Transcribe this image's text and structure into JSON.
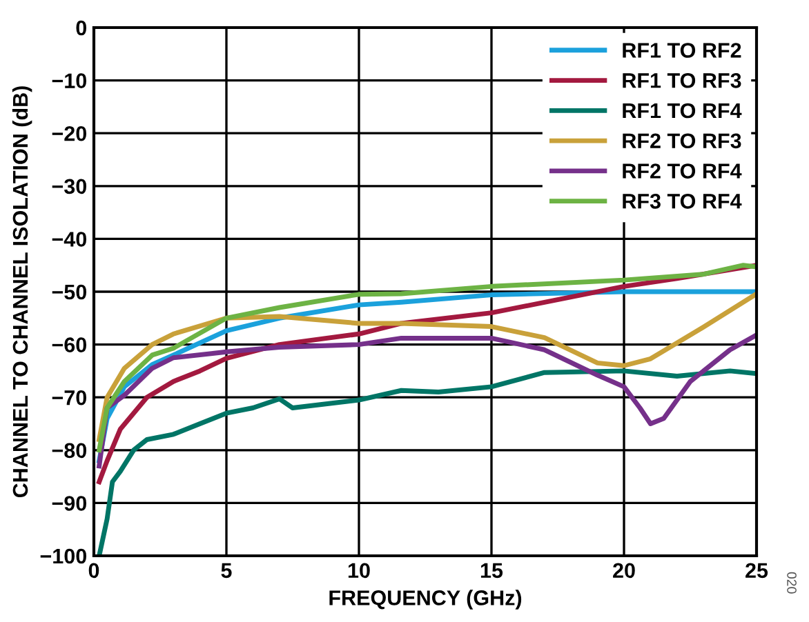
{
  "chart_data": {
    "type": "line",
    "xlabel": "FREQUENCY (GHz)",
    "ylabel": "CHANNEL TO CHANNEL ISOLATION (dB)",
    "xlim": [
      0,
      25
    ],
    "xticks": [
      0,
      5,
      10,
      15,
      20,
      25
    ],
    "ylim": [
      -100,
      0
    ],
    "yticks": [
      -100,
      -90,
      -80,
      -70,
      -60,
      -50,
      -40,
      -30,
      -20,
      -10,
      0
    ],
    "grid": true,
    "legend": "top right",
    "annotations": [
      "020"
    ],
    "series": [
      {
        "name": "RF1 TO RF2",
        "color": "#1ba1dc",
        "x": [
          0.2,
          0.5,
          1.15,
          2.2,
          3,
          5,
          7,
          10,
          11.6,
          15,
          20,
          25
        ],
        "values": [
          -82,
          -74,
          -68,
          -63.8,
          -62,
          -57.4,
          -55,
          -52.5,
          -52,
          -50.6,
          -50,
          -50
        ]
      },
      {
        "name": "RF1 TO RF3",
        "color": "#a3193f",
        "x": [
          0.2,
          0.5,
          1,
          2,
          3,
          4,
          5,
          7,
          10,
          11.6,
          15,
          17,
          20,
          22,
          25
        ],
        "values": [
          -86,
          -82,
          -76,
          -70,
          -67,
          -65,
          -62.6,
          -60,
          -58,
          -56,
          -54,
          -52,
          -49,
          -47.5,
          -45
        ]
      },
      {
        "name": "RF1 TO RF4",
        "color": "#007566",
        "x": [
          0.2,
          0.5,
          0.7,
          1,
          1.5,
          2,
          3,
          4,
          5,
          6,
          7,
          7.5,
          10,
          11.6,
          13,
          15,
          17,
          20,
          22,
          24,
          25
        ],
        "values": [
          -100,
          -93,
          -86,
          -84,
          -80,
          -78,
          -77,
          -75,
          -73,
          -72,
          -70.3,
          -72,
          -70.5,
          -68.7,
          -69,
          -68,
          -65.3,
          -65,
          -66,
          -65,
          -65.5
        ]
      },
      {
        "name": "RF2 TO RF3",
        "color": "#c9a13a",
        "x": [
          0.2,
          0.5,
          1.15,
          2.2,
          3,
          5,
          7,
          10,
          11.6,
          15,
          17,
          19,
          20,
          21,
          23,
          25
        ],
        "values": [
          -78,
          -70,
          -64.5,
          -60,
          -58,
          -55,
          -54.7,
          -56,
          -56,
          -56.6,
          -58.7,
          -63.5,
          -64,
          -62.7,
          -56.7,
          -50.4
        ]
      },
      {
        "name": "RF2 TO RF4",
        "color": "#75308a",
        "x": [
          0.2,
          0.5,
          1.15,
          2.2,
          3,
          5,
          7,
          10,
          11.6,
          15,
          17,
          19,
          20,
          20.6,
          21,
          21.5,
          22.5,
          24,
          25
        ],
        "values": [
          -83,
          -72,
          -69.6,
          -64.5,
          -62.5,
          -61.4,
          -60.5,
          -60,
          -58.8,
          -58.8,
          -61,
          -65.8,
          -68,
          -72,
          -75,
          -74,
          -67,
          -61,
          -58.2
        ]
      },
      {
        "name": "RF3 TO RF4",
        "color": "#6db344",
        "x": [
          0.2,
          0.5,
          1.15,
          2.2,
          3,
          5,
          7,
          10,
          11.6,
          15,
          20,
          23,
          24.5,
          25
        ],
        "values": [
          -80,
          -72,
          -67,
          -62,
          -60.7,
          -55,
          -53,
          -50.5,
          -50.4,
          -49,
          -47.8,
          -46.7,
          -45,
          -45.3
        ]
      }
    ]
  }
}
